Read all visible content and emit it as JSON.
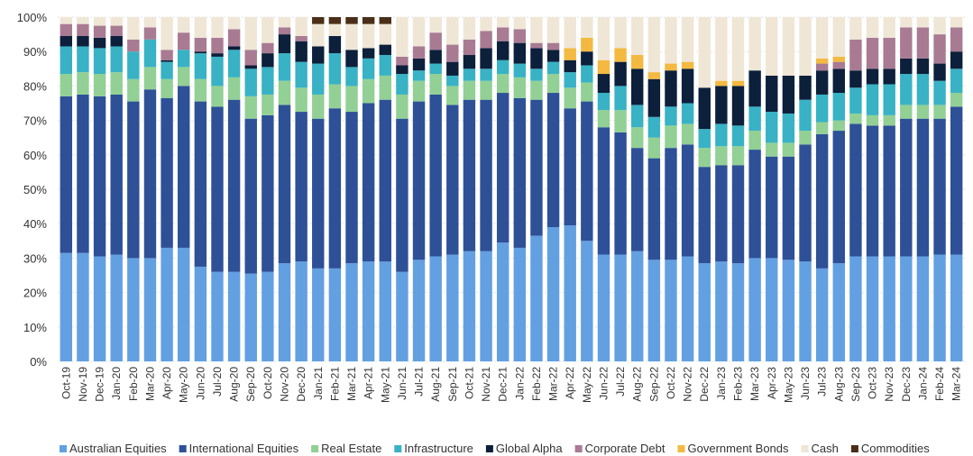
{
  "chart_data": {
    "type": "stacked_bar",
    "categories": [
      "Oct-19",
      "Nov-19",
      "Dec-19",
      "Jan-20",
      "Feb-20",
      "Mar-20",
      "Apr-20",
      "May-20",
      "Jun-20",
      "Jul-20",
      "Aug-20",
      "Sep-20",
      "Oct-20",
      "Nov-20",
      "Dec-20",
      "Jan-21",
      "Feb-21",
      "Mar-21",
      "Apr-21",
      "May-21",
      "Jun-21",
      "Jul-21",
      "Aug-21",
      "Sep-21",
      "Oct-21",
      "Nov-21",
      "Dec-21",
      "Jan-22",
      "Feb-22",
      "Mar-22",
      "Apr-22",
      "May-22",
      "Jun-22",
      "Jul-22",
      "Aug-22",
      "Sep-22",
      "Oct-22",
      "Nov-22",
      "Dec-22",
      "Jan-23",
      "Feb-23",
      "Mar-23",
      "Apr-23",
      "May-23",
      "Jun-23",
      "Jul-23",
      "Aug-23",
      "Sep-23",
      "Oct-23",
      "Nov-23",
      "Dec-23",
      "Jan-24",
      "Feb-24",
      "Mar-24"
    ],
    "series": [
      {
        "name": "Australian Equities",
        "color": "#62a0e2",
        "values": [
          31.5,
          31.5,
          30.5,
          31,
          30,
          30,
          33,
          33,
          27.5,
          26,
          26,
          25.5,
          26,
          28.5,
          29,
          27,
          27,
          28.5,
          29,
          29,
          26,
          29.5,
          30.5,
          31,
          32,
          32,
          34.5,
          33,
          36.5,
          39,
          39.5,
          35,
          31,
          31,
          32,
          29.5,
          29.5,
          30.5,
          28.5,
          29,
          28.5,
          30,
          30,
          29.5,
          29,
          27,
          28.5,
          30.5,
          30.5,
          30.5,
          30.5,
          30.5,
          31,
          31
        ]
      },
      {
        "name": "International Equities",
        "color": "#2e5097",
        "values": [
          45.5,
          46,
          46.5,
          46.5,
          45.5,
          49,
          43.5,
          47,
          48,
          48,
          50,
          45,
          45.5,
          46,
          43.5,
          43.5,
          46.5,
          44,
          46,
          47,
          44.5,
          46,
          47,
          43.5,
          44,
          44,
          43.5,
          43.5,
          39.5,
          39,
          34,
          40.5,
          37,
          35.5,
          30,
          29.5,
          32.5,
          32.5,
          28,
          28,
          28.5,
          31.5,
          29.5,
          30,
          34,
          39,
          38.5,
          38.5,
          38,
          38,
          40,
          40,
          39.5,
          43
        ]
      },
      {
        "name": "Real Estate",
        "color": "#92d095",
        "values": [
          6.5,
          6.5,
          6.5,
          6.5,
          6.5,
          6.5,
          5.5,
          5.5,
          6.5,
          6,
          6.5,
          6.5,
          6,
          7,
          7,
          7,
          7,
          7.5,
          7,
          7,
          7,
          6,
          6,
          5.5,
          5.5,
          5.5,
          5.5,
          6,
          5.5,
          5.5,
          6,
          5.5,
          5,
          6.5,
          6,
          6,
          6.5,
          6,
          5.5,
          5.5,
          5.5,
          5.5,
          4,
          4,
          4,
          3.5,
          3,
          3,
          3,
          3,
          4,
          4,
          4,
          4
        ]
      },
      {
        "name": "Infrastructure",
        "color": "#38b2c4",
        "values": [
          8,
          7.5,
          7.5,
          7.5,
          8,
          8,
          5,
          5,
          7.5,
          8.5,
          8,
          8,
          8,
          8,
          7.5,
          9,
          9,
          5.5,
          6,
          6,
          6,
          3,
          3,
          3,
          3.5,
          3.5,
          4,
          4,
          3.5,
          3.5,
          4.5,
          5,
          5,
          7,
          6.5,
          6,
          5.5,
          6,
          5.5,
          6.5,
          6,
          7,
          9,
          8.5,
          9,
          8,
          8,
          7.5,
          9,
          9,
          9,
          9,
          7,
          7
        ]
      },
      {
        "name": "Global Alpha",
        "color": "#0c1f3b",
        "values": [
          3,
          3,
          3,
          3,
          0,
          0,
          0.5,
          0,
          0.5,
          1,
          1,
          1,
          4,
          5.5,
          6,
          5,
          5,
          5,
          3,
          3,
          2.5,
          3.5,
          4,
          4,
          4,
          6,
          5.5,
          6,
          6,
          3.5,
          3.5,
          4,
          5.5,
          7,
          10.5,
          11,
          10.5,
          10,
          12,
          11,
          11.5,
          10.5,
          10.5,
          11,
          7,
          7,
          7,
          5,
          4.5,
          4.5,
          4.5,
          4.5,
          5,
          5
        ]
      },
      {
        "name": "Corporate Debt",
        "color": "#a87b93",
        "values": [
          3.5,
          3.5,
          3.5,
          3,
          3.5,
          3.5,
          3,
          5,
          4,
          4.5,
          5,
          4.5,
          3,
          2,
          1.5,
          0,
          0,
          0,
          0,
          0,
          2.5,
          3.5,
          5,
          5,
          4.5,
          5,
          4,
          4,
          1.5,
          2,
          0,
          0,
          0,
          0,
          0,
          0,
          0,
          0,
          0,
          0,
          0,
          0,
          0,
          0,
          0,
          2,
          2,
          9,
          9,
          9,
          9,
          9,
          8.5,
          7
        ]
      },
      {
        "name": "Government Bonds",
        "color": "#f3b941",
        "values": [
          0,
          0,
          0,
          0,
          0,
          0,
          0,
          0,
          0,
          0,
          0,
          0,
          0,
          0,
          0,
          0,
          0,
          0,
          0,
          0,
          0,
          0,
          0,
          0,
          0,
          0,
          0,
          0,
          0,
          0,
          3.5,
          4,
          4,
          4,
          4,
          2,
          2,
          2,
          0,
          1.5,
          1.5,
          0,
          0,
          0,
          0,
          1.5,
          1.5,
          0,
          0,
          0,
          0,
          0,
          0,
          0
        ]
      },
      {
        "name": "Cash",
        "color": "#efe6d6",
        "values": [
          2,
          2,
          2.5,
          2.5,
          6.5,
          3,
          9.5,
          4.5,
          6,
          6,
          3.5,
          9.5,
          7.5,
          3,
          5.5,
          6.5,
          3.5,
          7.5,
          7,
          6,
          11.5,
          8.5,
          4.5,
          8,
          6.5,
          4,
          3,
          3.5,
          7.5,
          7.5,
          9,
          6,
          12.5,
          9,
          11,
          16,
          13.5,
          13,
          20.5,
          18.5,
          18.5,
          15.5,
          17,
          17,
          17,
          12,
          11.5,
          6.5,
          6,
          6,
          3,
          3,
          5,
          3
        ]
      },
      {
        "name": "Commodities",
        "color": "#4a2e17",
        "values": [
          0,
          0,
          0,
          0,
          0,
          0,
          0,
          0,
          0,
          0,
          0,
          0,
          0,
          0,
          0,
          2,
          2,
          2,
          2,
          2,
          0,
          0,
          0,
          0,
          0,
          0,
          0,
          0,
          0,
          0,
          0,
          0,
          0,
          0,
          0,
          0,
          0,
          0,
          0,
          0,
          0,
          0,
          0,
          0,
          0,
          0,
          0,
          0,
          0,
          0,
          0,
          0,
          0,
          0
        ]
      }
    ],
    "ylim": [
      0,
      100
    ],
    "yticks": [
      {
        "value": 0,
        "label": "0%"
      },
      {
        "value": 10,
        "label": "10%"
      },
      {
        "value": 20,
        "label": "20%"
      },
      {
        "value": 30,
        "label": "30%"
      },
      {
        "value": 40,
        "label": "40%"
      },
      {
        "value": 50,
        "label": "50%"
      },
      {
        "value": 60,
        "label": "60%"
      },
      {
        "value": 70,
        "label": "70%"
      },
      {
        "value": 80,
        "label": "80%"
      },
      {
        "value": 90,
        "label": "90%"
      },
      {
        "value": 100,
        "label": "100%"
      }
    ],
    "grid": true,
    "legend": "bottom"
  }
}
